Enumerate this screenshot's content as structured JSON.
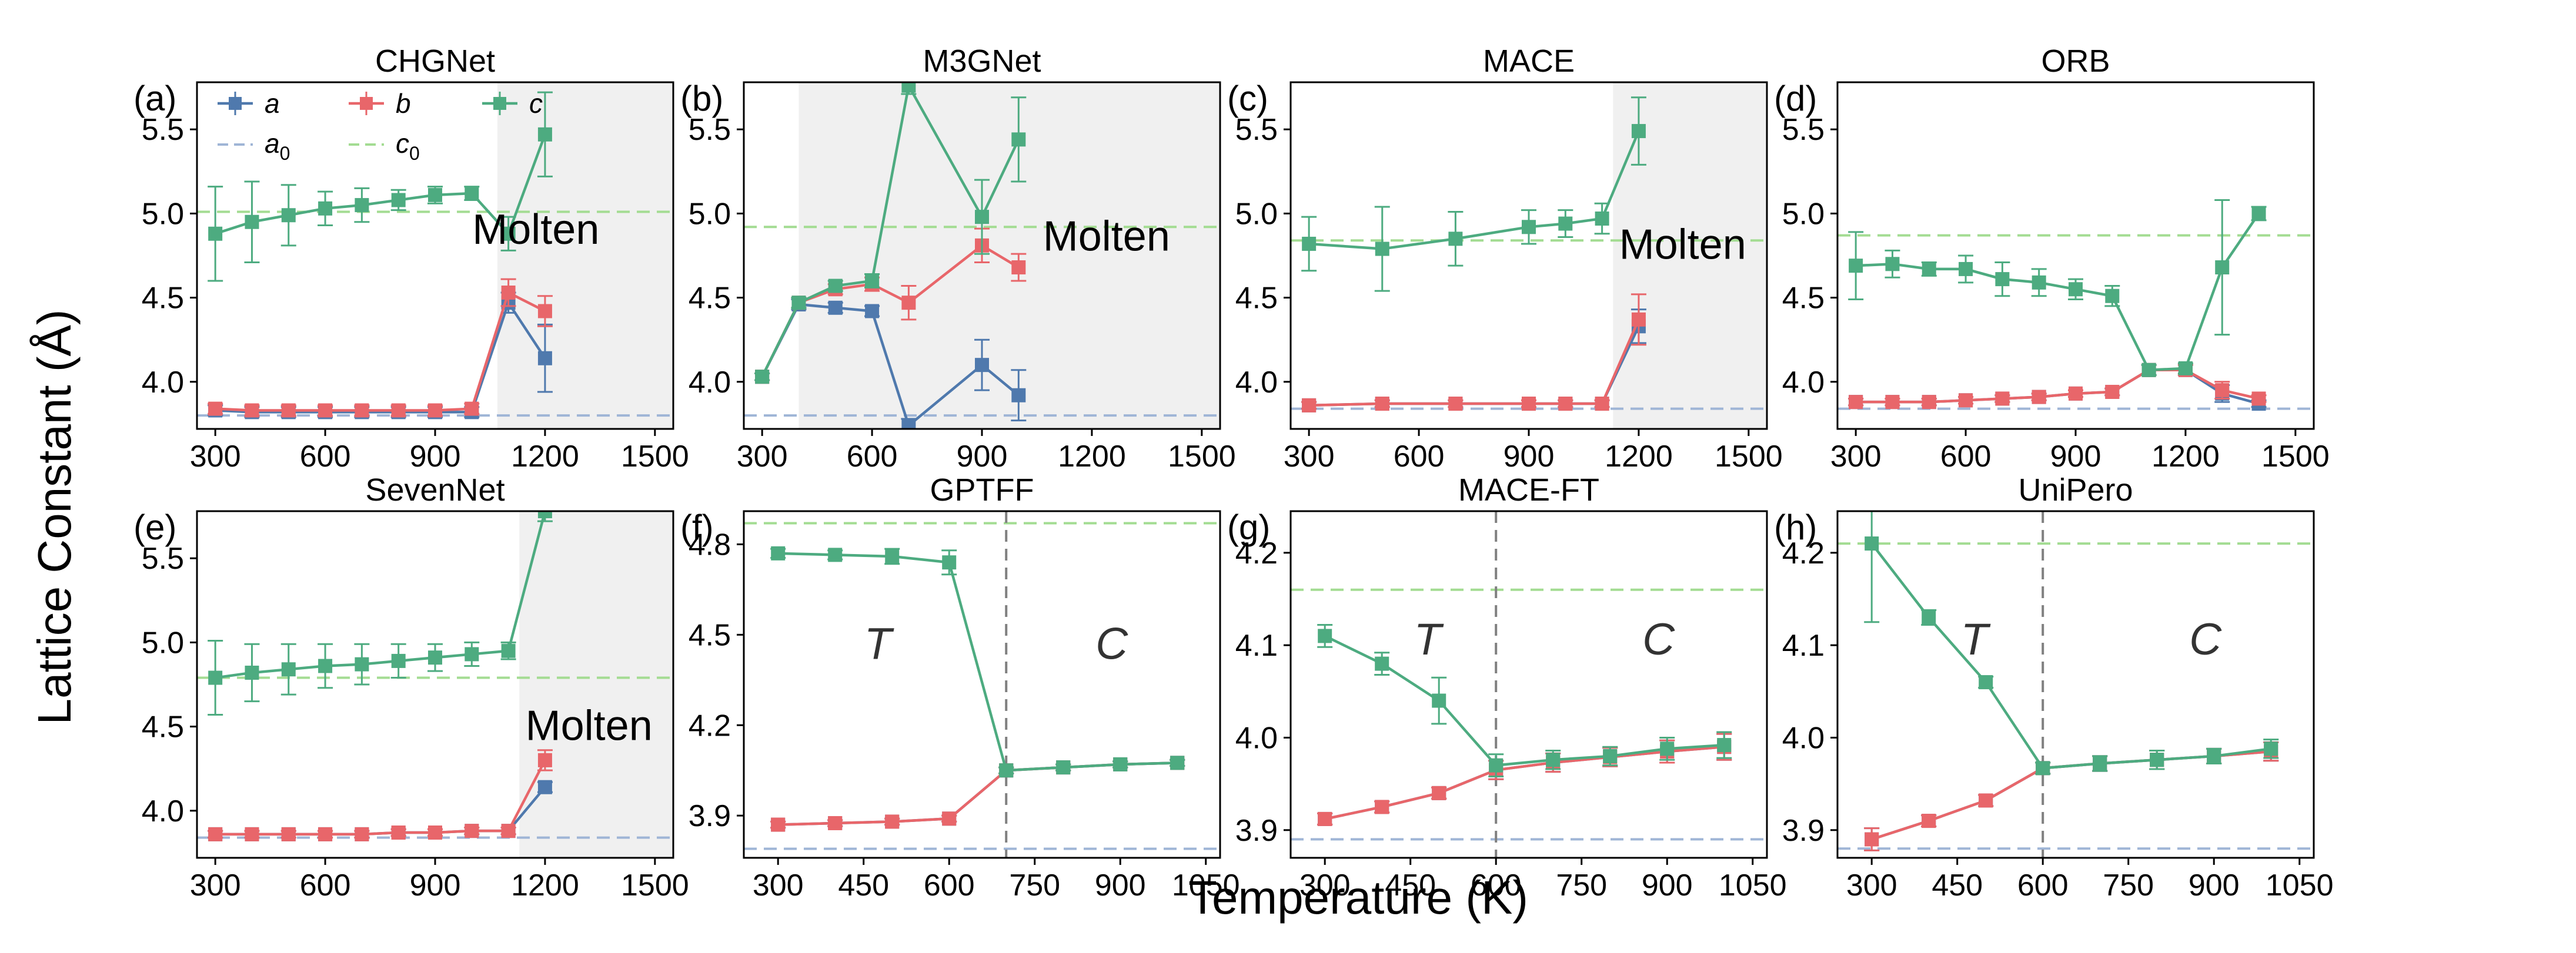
{
  "figure": {
    "ylabel": "Lattice Constant (Å)",
    "xlabel": "Temperature (K)"
  },
  "colors": {
    "a": "#4f79ad",
    "b": "#e8666a",
    "c": "#4dab80",
    "a0": "#9fb5d6",
    "c0": "#a3dc92",
    "molten_bg": "#f0f0f0",
    "phase_line": "#808080"
  },
  "legend": {
    "a": "a",
    "b": "b",
    "c": "c",
    "a0_base": "a",
    "a0_sub": "0",
    "c0_base": "c",
    "c0_sub": "0"
  },
  "chart_data": [
    {
      "id": "CHGNet",
      "type": "line",
      "letter": "(a)",
      "title": "CHGNet",
      "xlim": [
        250,
        1550
      ],
      "ylim": [
        3.72,
        5.78
      ],
      "xticks": [
        300,
        600,
        900,
        1200,
        1500
      ],
      "yticks": [
        4.0,
        4.5,
        5.0,
        5.5
      ],
      "a0": 3.8,
      "c0": 5.01,
      "molten": {
        "from": 1070,
        "label": "Molten",
        "label_x": 1175,
        "label_y": 4.82
      },
      "legend": true,
      "series": [
        {
          "name": "a",
          "x": [
            300,
            400,
            500,
            600,
            700,
            800,
            900,
            1000,
            1100,
            1200
          ],
          "y": [
            3.83,
            3.82,
            3.82,
            3.82,
            3.82,
            3.82,
            3.82,
            3.82,
            4.47,
            4.14
          ],
          "err": [
            0.03,
            0.03,
            0.03,
            0.03,
            0.03,
            0.03,
            0.03,
            0.03,
            0.06,
            0.2
          ]
        },
        {
          "name": "b",
          "x": [
            300,
            400,
            500,
            600,
            700,
            800,
            900,
            1000,
            1100,
            1200
          ],
          "y": [
            3.84,
            3.83,
            3.83,
            3.83,
            3.83,
            3.83,
            3.83,
            3.84,
            4.53,
            4.42
          ],
          "err": [
            0.03,
            0.03,
            0.03,
            0.03,
            0.03,
            0.03,
            0.03,
            0.03,
            0.08,
            0.09
          ]
        },
        {
          "name": "c",
          "x": [
            300,
            400,
            500,
            600,
            700,
            800,
            900,
            1000,
            1100,
            1200
          ],
          "y": [
            4.88,
            4.95,
            4.99,
            5.03,
            5.05,
            5.08,
            5.11,
            5.12,
            4.88,
            5.47
          ],
          "err": [
            0.28,
            0.24,
            0.18,
            0.1,
            0.1,
            0.06,
            0.05,
            0.04,
            0.1,
            0.25
          ]
        }
      ]
    },
    {
      "id": "M3GNet",
      "type": "line",
      "letter": "(b)",
      "title": "M3GNet",
      "xlim": [
        250,
        1550
      ],
      "ylim": [
        3.72,
        5.78
      ],
      "xticks": [
        300,
        600,
        900,
        1200,
        1500
      ],
      "yticks": [
        4.0,
        4.5,
        5.0,
        5.5
      ],
      "a0": 3.8,
      "c0": 4.92,
      "molten": {
        "from": 400,
        "label": "Molten",
        "label_x": 1240,
        "label_y": 4.78
      },
      "legend": false,
      "series": [
        {
          "name": "a",
          "x": [
            300,
            400,
            500,
            600,
            700,
            900,
            1000
          ],
          "y": [
            4.03,
            4.46,
            4.44,
            4.42,
            3.74,
            4.1,
            3.92
          ],
          "err": [
            0.02,
            0.03,
            0.03,
            0.03,
            0.04,
            0.15,
            0.15
          ]
        },
        {
          "name": "b",
          "x": [
            300,
            400,
            500,
            600,
            700,
            900,
            1000
          ],
          "y": [
            4.03,
            4.47,
            4.55,
            4.58,
            4.47,
            4.81,
            4.68
          ],
          "err": [
            0.02,
            0.03,
            0.03,
            0.04,
            0.1,
            0.1,
            0.08
          ]
        },
        {
          "name": "c",
          "x": [
            300,
            400,
            500,
            600,
            700,
            900,
            1000
          ],
          "y": [
            4.03,
            4.47,
            4.57,
            4.6,
            5.76,
            4.98,
            5.44
          ],
          "err": [
            0.02,
            0.03,
            0.03,
            0.04,
            0.05,
            0.22,
            0.25
          ]
        }
      ]
    },
    {
      "id": "MACE",
      "type": "line",
      "letter": "(c)",
      "title": "MACE",
      "xlim": [
        250,
        1550
      ],
      "ylim": [
        3.72,
        5.78
      ],
      "xticks": [
        300,
        600,
        900,
        1200,
        1500
      ],
      "yticks": [
        4.0,
        4.5,
        5.0,
        5.5
      ],
      "a0": 3.84,
      "c0": 4.84,
      "molten": {
        "from": 1130,
        "label": "Molten",
        "label_x": 1320,
        "label_y": 4.73
      },
      "legend": false,
      "series": [
        {
          "name": "a",
          "x": [
            300,
            500,
            700,
            900,
            1000,
            1100,
            1200
          ],
          "y": [
            3.86,
            3.87,
            3.87,
            3.87,
            3.87,
            3.87,
            4.33
          ],
          "err": [
            0.02,
            0.02,
            0.02,
            0.02,
            0.02,
            0.02,
            0.1
          ]
        },
        {
          "name": "b",
          "x": [
            300,
            500,
            700,
            900,
            1000,
            1100,
            1200
          ],
          "y": [
            3.86,
            3.87,
            3.87,
            3.87,
            3.87,
            3.87,
            4.37
          ],
          "err": [
            0.02,
            0.02,
            0.02,
            0.02,
            0.02,
            0.02,
            0.15
          ]
        },
        {
          "name": "c",
          "x": [
            300,
            500,
            700,
            900,
            1000,
            1100,
            1200
          ],
          "y": [
            4.82,
            4.79,
            4.85,
            4.92,
            4.94,
            4.97,
            5.49
          ],
          "err": [
            0.16,
            0.25,
            0.16,
            0.1,
            0.08,
            0.09,
            0.2
          ]
        }
      ]
    },
    {
      "id": "ORB",
      "type": "line",
      "letter": "(d)",
      "title": "ORB",
      "xlim": [
        250,
        1550
      ],
      "ylim": [
        3.72,
        5.78
      ],
      "xticks": [
        300,
        600,
        900,
        1200,
        1500
      ],
      "yticks": [
        4.0,
        4.5,
        5.0,
        5.5
      ],
      "a0": 3.84,
      "c0": 4.87,
      "molten": null,
      "legend": false,
      "series": [
        {
          "name": "a",
          "x": [
            300,
            400,
            500,
            600,
            700,
            800,
            900,
            1000,
            1100,
            1200,
            1300,
            1400
          ],
          "y": [
            3.88,
            3.88,
            3.88,
            3.89,
            3.9,
            3.91,
            3.93,
            3.94,
            4.07,
            4.07,
            3.93,
            3.87
          ],
          "err": [
            0.02,
            0.02,
            0.02,
            0.02,
            0.02,
            0.02,
            0.02,
            0.02,
            0.03,
            0.03,
            0.05,
            0.02
          ]
        },
        {
          "name": "b",
          "x": [
            300,
            400,
            500,
            600,
            700,
            800,
            900,
            1000,
            1100,
            1200,
            1300,
            1400
          ],
          "y": [
            3.88,
            3.88,
            3.88,
            3.89,
            3.9,
            3.91,
            3.93,
            3.94,
            4.07,
            4.07,
            3.95,
            3.9
          ],
          "err": [
            0.02,
            0.02,
            0.02,
            0.02,
            0.02,
            0.02,
            0.02,
            0.02,
            0.03,
            0.03,
            0.05,
            0.02
          ]
        },
        {
          "name": "c",
          "x": [
            300,
            400,
            500,
            600,
            700,
            800,
            900,
            1000,
            1100,
            1200,
            1300,
            1400
          ],
          "y": [
            4.69,
            4.7,
            4.67,
            4.67,
            4.61,
            4.59,
            4.55,
            4.51,
            4.07,
            4.08,
            4.68,
            5.0
          ],
          "err": [
            0.2,
            0.08,
            0.04,
            0.08,
            0.1,
            0.08,
            0.06,
            0.06,
            0.03,
            0.03,
            0.4,
            0.04
          ]
        }
      ]
    },
    {
      "id": "SevenNet",
      "type": "line",
      "letter": "(e)",
      "title": "SevenNet",
      "xlim": [
        250,
        1550
      ],
      "ylim": [
        3.72,
        5.78
      ],
      "xticks": [
        300,
        600,
        900,
        1200,
        1500
      ],
      "yticks": [
        4.0,
        4.5,
        5.0,
        5.5
      ],
      "a0": 3.84,
      "c0": 4.79,
      "molten": {
        "from": 1130,
        "label": "Molten",
        "label_x": 1320,
        "label_y": 4.42
      },
      "legend": false,
      "series": [
        {
          "name": "a",
          "x": [
            300,
            400,
            500,
            600,
            700,
            800,
            900,
            1000,
            1100,
            1200
          ],
          "y": [
            3.86,
            3.86,
            3.86,
            3.86,
            3.86,
            3.87,
            3.87,
            3.88,
            3.88,
            4.14
          ],
          "err": [
            0.02,
            0.02,
            0.02,
            0.02,
            0.02,
            0.02,
            0.02,
            0.02,
            0.02,
            0.03
          ]
        },
        {
          "name": "b",
          "x": [
            300,
            400,
            500,
            600,
            700,
            800,
            900,
            1000,
            1100,
            1200
          ],
          "y": [
            3.86,
            3.86,
            3.86,
            3.86,
            3.86,
            3.87,
            3.87,
            3.88,
            3.88,
            4.3
          ],
          "err": [
            0.02,
            0.02,
            0.02,
            0.02,
            0.02,
            0.02,
            0.02,
            0.02,
            0.02,
            0.06
          ]
        },
        {
          "name": "c",
          "x": [
            300,
            400,
            500,
            600,
            700,
            800,
            900,
            1000,
            1100,
            1200
          ],
          "y": [
            4.79,
            4.82,
            4.84,
            4.86,
            4.87,
            4.89,
            4.91,
            4.93,
            4.95,
            5.78
          ],
          "err": [
            0.22,
            0.17,
            0.15,
            0.13,
            0.12,
            0.1,
            0.08,
            0.07,
            0.05,
            0.06
          ]
        }
      ]
    },
    {
      "id": "GPTFF",
      "type": "line",
      "letter": "(f)",
      "title": "GPTFF",
      "xlim": [
        240,
        1075
      ],
      "ylim": [
        3.76,
        4.91
      ],
      "xticks": [
        300,
        450,
        600,
        750,
        900,
        1050
      ],
      "yticks": [
        3.9,
        4.2,
        4.5,
        4.8
      ],
      "a0": 3.79,
      "c0": 4.87,
      "molten": null,
      "phase": {
        "x": 700,
        "left": "T",
        "right": "C",
        "left_x": 475,
        "right_x": 885,
        "label_y": 4.42
      },
      "legend": false,
      "series": [
        {
          "name": "a",
          "x": [
            300,
            400,
            500,
            600,
            700,
            800,
            900,
            1000
          ],
          "y": [
            3.87,
            3.875,
            3.88,
            3.89,
            4.05,
            4.06,
            4.07,
            4.075
          ],
          "err": [
            0.01,
            0.01,
            0.01,
            0.01,
            0.01,
            0.01,
            0.01,
            0.01
          ]
        },
        {
          "name": "b",
          "x": [
            300,
            400,
            500,
            600,
            700,
            800,
            900,
            1000
          ],
          "y": [
            3.87,
            3.875,
            3.88,
            3.89,
            4.05,
            4.06,
            4.07,
            4.075
          ],
          "err": [
            0.01,
            0.01,
            0.01,
            0.01,
            0.01,
            0.01,
            0.01,
            0.01
          ]
        },
        {
          "name": "c",
          "x": [
            300,
            400,
            500,
            600,
            700,
            800,
            900,
            1000
          ],
          "y": [
            4.77,
            4.765,
            4.76,
            4.74,
            4.05,
            4.06,
            4.07,
            4.075
          ],
          "err": [
            0.015,
            0.015,
            0.025,
            0.04,
            0.01,
            0.01,
            0.01,
            0.01
          ]
        }
      ]
    },
    {
      "id": "MACE-FT",
      "type": "line",
      "letter": "(g)",
      "title": "MACE-FT",
      "xlim": [
        240,
        1075
      ],
      "ylim": [
        3.87,
        4.245
      ],
      "xticks": [
        300,
        450,
        600,
        750,
        900,
        1050
      ],
      "yticks": [
        3.9,
        4.0,
        4.1,
        4.2
      ],
      "a0": 3.89,
      "c0": 4.16,
      "molten": null,
      "phase": {
        "x": 600,
        "left": "T",
        "right": "C",
        "left_x": 480,
        "right_x": 885,
        "label_y": 4.09
      },
      "legend": false,
      "series": [
        {
          "name": "a",
          "x": [
            300,
            400,
            500,
            600,
            700,
            800,
            900,
            1000
          ],
          "y": [
            3.912,
            3.925,
            3.94,
            3.965,
            3.973,
            3.979,
            3.985,
            3.99
          ],
          "err": [
            0.006,
            0.006,
            0.006,
            0.01,
            0.01,
            0.01,
            0.012,
            0.014
          ]
        },
        {
          "name": "b",
          "x": [
            300,
            400,
            500,
            600,
            700,
            800,
            900,
            1000
          ],
          "y": [
            3.912,
            3.925,
            3.94,
            3.965,
            3.973,
            3.979,
            3.985,
            3.99
          ],
          "err": [
            0.006,
            0.006,
            0.006,
            0.01,
            0.01,
            0.01,
            0.012,
            0.014
          ]
        },
        {
          "name": "c",
          "x": [
            300,
            400,
            500,
            600,
            700,
            800,
            900,
            1000
          ],
          "y": [
            4.11,
            4.08,
            4.04,
            3.97,
            3.976,
            3.98,
            3.988,
            3.992
          ],
          "err": [
            0.012,
            0.012,
            0.025,
            0.012,
            0.01,
            0.01,
            0.012,
            0.014
          ]
        }
      ]
    },
    {
      "id": "UniPero",
      "type": "line",
      "letter": "(h)",
      "title": "UniPero",
      "xlim": [
        240,
        1075
      ],
      "ylim": [
        3.87,
        4.245
      ],
      "xticks": [
        300,
        450,
        600,
        750,
        900,
        1050
      ],
      "yticks": [
        3.9,
        4.0,
        4.1,
        4.2
      ],
      "a0": 3.88,
      "c0": 4.21,
      "molten": null,
      "phase": {
        "x": 600,
        "left": "T",
        "right": "C",
        "left_x": 480,
        "right_x": 885,
        "label_y": 4.09
      },
      "legend": false,
      "series": [
        {
          "name": "a",
          "x": [
            300,
            400,
            500,
            600,
            700,
            800,
            900,
            1000
          ],
          "y": [
            3.89,
            3.91,
            3.932,
            3.967,
            3.972,
            3.976,
            3.98,
            3.985
          ],
          "err": [
            0.012,
            0.006,
            0.006,
            0.006,
            0.008,
            0.01,
            0.008,
            0.01
          ]
        },
        {
          "name": "b",
          "x": [
            300,
            400,
            500,
            600,
            700,
            800,
            900,
            1000
          ],
          "y": [
            3.89,
            3.91,
            3.932,
            3.967,
            3.972,
            3.976,
            3.98,
            3.985
          ],
          "err": [
            0.012,
            0.006,
            0.006,
            0.006,
            0.008,
            0.01,
            0.008,
            0.01
          ]
        },
        {
          "name": "c",
          "x": [
            300,
            400,
            500,
            600,
            700,
            800,
            900,
            1000
          ],
          "y": [
            4.21,
            4.13,
            4.06,
            3.967,
            3.972,
            3.976,
            3.98,
            3.988
          ],
          "err": [
            0.085,
            0.008,
            0.006,
            0.006,
            0.008,
            0.01,
            0.008,
            0.01
          ]
        }
      ]
    }
  ]
}
